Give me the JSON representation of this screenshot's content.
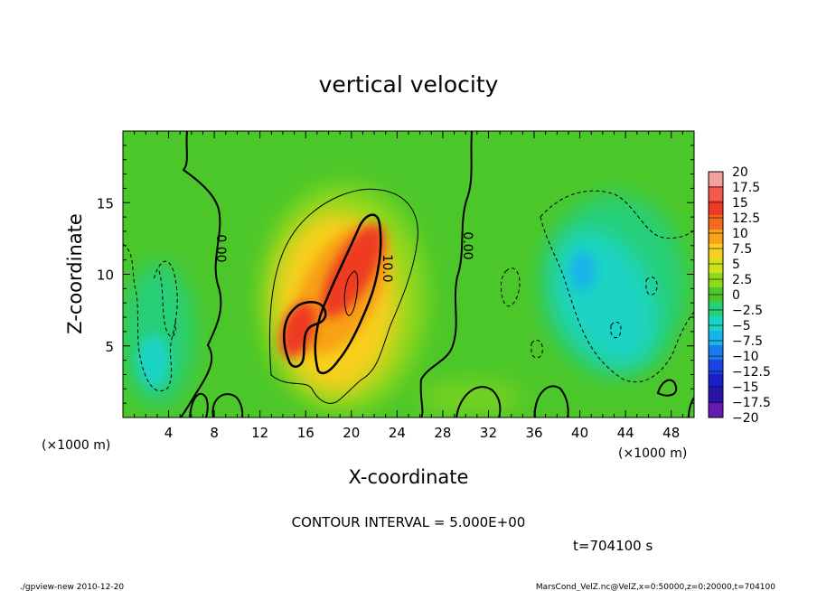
{
  "chart_data": {
    "type": "heatmap",
    "title": "vertical velocity",
    "xlabel": "X-coordinate",
    "ylabel": "Z-coordinate",
    "x_unit_left": "(×1000 m)",
    "x_unit_right": "(×1000 m)",
    "xlim": [
      0,
      50
    ],
    "ylim": [
      0,
      20
    ],
    "x_ticks": [
      4,
      8,
      12,
      16,
      20,
      24,
      28,
      32,
      36,
      40,
      44,
      48
    ],
    "x_tick_labels": [
      "4",
      "8",
      "12",
      "16",
      "20",
      "24",
      "28",
      "32",
      "36",
      "40",
      "44",
      "48"
    ],
    "y_ticks": [
      5,
      10,
      15
    ],
    "y_tick_labels": [
      "5",
      "10",
      "15"
    ],
    "colorbar": {
      "labels": [
        "20",
        "17.5",
        "15",
        "12.5",
        "10",
        "7.5",
        "5",
        "2.5",
        "0",
        "−2.5",
        "−5",
        "−7.5",
        "−10",
        "−12.5",
        "−15",
        "−17.5",
        "−20"
      ],
      "values": [
        20,
        17.5,
        15,
        12.5,
        10,
        7.5,
        5,
        2.5,
        0,
        -2.5,
        -5,
        -7.5,
        -10,
        -12.5,
        -15,
        -17.5,
        -20
      ],
      "colors": [
        "#f5a0a0",
        "#f25a50",
        "#ee3a22",
        "#f26a1c",
        "#f7a218",
        "#f8cf1e",
        "#cde41c",
        "#8fd81a",
        "#4cc72a",
        "#27cf77",
        "#1ad4c4",
        "#18b3ea",
        "#1a7bea",
        "#1a44e0",
        "#1820c6",
        "#2a14a8",
        "#6618b2"
      ]
    },
    "contour_labels": [
      "0.00",
      "10.0",
      "0.00"
    ],
    "contour_interval_text": "CONTOUR INTERVAL = 5.000E+00",
    "time_text": "t=704100 s"
  },
  "footer": {
    "left": "./gpview-new  2010-12-20",
    "right": "MarsCond_VelZ.nc@VelZ,x=0:50000,z=0:20000,t=704100"
  }
}
